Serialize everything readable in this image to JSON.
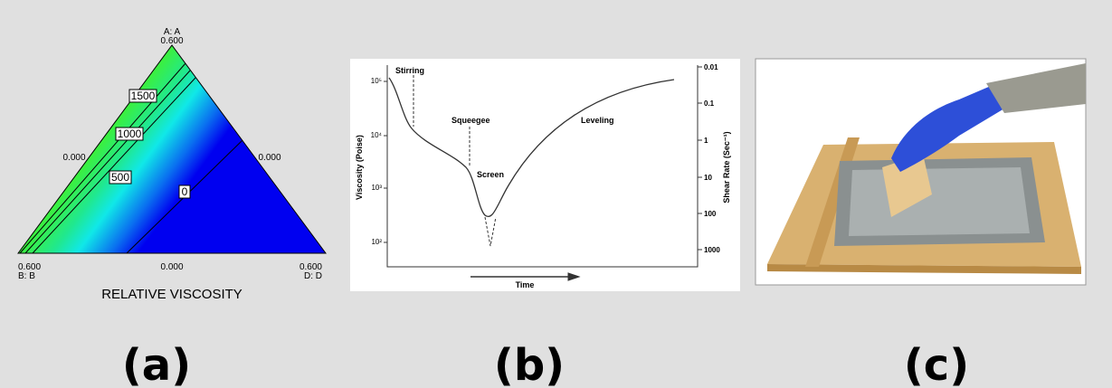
{
  "panels": [
    {
      "label": "(a)",
      "vertices": {
        "top_name": "A: A",
        "top_value": "0.600",
        "left_value": "0.600",
        "left_name": "B: B",
        "right_value": "0.600",
        "right_name": "D: D"
      },
      "edge_values": [
        "0.000",
        "0.000",
        "0.000"
      ],
      "contour_labels": [
        "1500",
        "1000",
        "500",
        "0"
      ],
      "title": "RELATIVE VISCOSITY"
    },
    {
      "label": "(b)",
      "y_label": "Viscosity (Poise)",
      "y2_label": "Shear Rate (Sec⁻¹)",
      "x_label": "Time",
      "y_ticks": [
        "10⁵",
        "10⁴",
        "10³",
        "10²"
      ],
      "y2_ticks": [
        "0.01",
        "0.1",
        "1",
        "10",
        "100",
        "1000"
      ],
      "annotations": [
        "Stirring",
        "Squeegee",
        "Screen",
        "Leveling"
      ]
    },
    {
      "label": "(c)"
    }
  ]
}
